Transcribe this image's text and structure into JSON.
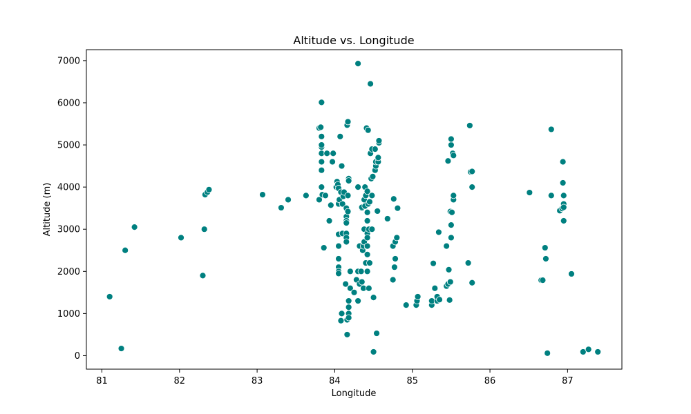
{
  "chart_data": {
    "type": "scatter",
    "title": "Altitude vs. Longitude",
    "xlabel": "Longitude",
    "ylabel": "Altitude (m)",
    "xlim": [
      80.8,
      87.7
    ],
    "ylim": [
      -320,
      7260
    ],
    "xticks": [
      81,
      82,
      83,
      84,
      85,
      86,
      87
    ],
    "yticks": [
      0,
      1000,
      2000,
      3000,
      4000,
      5000,
      6000,
      7000
    ],
    "grid": false,
    "marker_color": "#008080",
    "series": [
      {
        "points": [
          [
            81.1,
            1400
          ],
          [
            81.25,
            170
          ],
          [
            81.3,
            2500
          ],
          [
            81.42,
            3050
          ],
          [
            82.02,
            2800
          ],
          [
            82.3,
            1900
          ],
          [
            82.32,
            3000
          ],
          [
            82.33,
            3820
          ],
          [
            82.36,
            3880
          ],
          [
            82.38,
            3940
          ],
          [
            83.07,
            3820
          ],
          [
            83.31,
            3510
          ],
          [
            83.4,
            3700
          ],
          [
            83.63,
            3800
          ],
          [
            83.8,
            3700
          ],
          [
            83.8,
            5400
          ],
          [
            83.82,
            5420
          ],
          [
            83.83,
            6010
          ],
          [
            83.83,
            4800
          ],
          [
            83.83,
            4600
          ],
          [
            83.83,
            4400
          ],
          [
            83.83,
            4000
          ],
          [
            83.83,
            4950
          ],
          [
            83.83,
            5000
          ],
          [
            83.83,
            5200
          ],
          [
            83.84,
            3820
          ],
          [
            83.86,
            2560
          ],
          [
            83.88,
            3800
          ],
          [
            83.9,
            4800
          ],
          [
            83.93,
            3200
          ],
          [
            83.95,
            3570
          ],
          [
            83.97,
            4600
          ],
          [
            83.98,
            4800
          ],
          [
            84.02,
            4000
          ],
          [
            84.03,
            4130
          ],
          [
            84.04,
            4060
          ],
          [
            84.05,
            3970
          ],
          [
            84.05,
            3600
          ],
          [
            84.05,
            2880
          ],
          [
            84.05,
            2600
          ],
          [
            84.05,
            2300
          ],
          [
            84.05,
            2100
          ],
          [
            84.05,
            2000
          ],
          [
            84.05,
            1950
          ],
          [
            84.06,
            3700
          ],
          [
            84.07,
            5200
          ],
          [
            84.08,
            3880
          ],
          [
            84.08,
            830
          ],
          [
            84.09,
            1000
          ],
          [
            84.09,
            4500
          ],
          [
            84.1,
            3600
          ],
          [
            84.1,
            2900
          ],
          [
            84.11,
            3780
          ],
          [
            84.12,
            3880
          ],
          [
            84.14,
            1700
          ],
          [
            84.15,
            3500
          ],
          [
            84.15,
            3300
          ],
          [
            84.15,
            3200
          ],
          [
            84.15,
            3150
          ],
          [
            84.15,
            2900
          ],
          [
            84.15,
            2800
          ],
          [
            84.15,
            2700
          ],
          [
            84.16,
            850
          ],
          [
            84.16,
            500
          ],
          [
            84.16,
            5470
          ],
          [
            84.17,
            5550
          ],
          [
            84.17,
            3420
          ],
          [
            84.17,
            3800
          ],
          [
            84.18,
            1300
          ],
          [
            84.18,
            1150
          ],
          [
            84.18,
            1000
          ],
          [
            84.18,
            900
          ],
          [
            84.18,
            4200
          ],
          [
            84.18,
            4150
          ],
          [
            84.2,
            1600
          ],
          [
            84.2,
            2000
          ],
          [
            84.25,
            1500
          ],
          [
            84.28,
            1800
          ],
          [
            84.3,
            2000
          ],
          [
            84.3,
            1300
          ],
          [
            84.3,
            4000
          ],
          [
            84.3,
            6930
          ],
          [
            84.32,
            1700
          ],
          [
            84.32,
            2600
          ],
          [
            84.34,
            2000
          ],
          [
            84.35,
            1750
          ],
          [
            84.35,
            3500
          ],
          [
            84.35,
            3520
          ],
          [
            84.36,
            2500
          ],
          [
            84.37,
            1600
          ],
          [
            84.37,
            2600
          ],
          [
            84.38,
            3000
          ],
          [
            84.38,
            3700
          ],
          [
            84.38,
            2700
          ],
          [
            84.39,
            3550
          ],
          [
            84.39,
            4000
          ],
          [
            84.4,
            2200
          ],
          [
            84.4,
            3800
          ],
          [
            84.41,
            5400
          ],
          [
            84.42,
            2000
          ],
          [
            84.42,
            2400
          ],
          [
            84.42,
            3200
          ],
          [
            84.42,
            3400
          ],
          [
            84.42,
            3900
          ],
          [
            84.42,
            2900
          ],
          [
            84.42,
            2800
          ],
          [
            84.42,
            2600
          ],
          [
            84.43,
            3600
          ],
          [
            84.43,
            5350
          ],
          [
            84.44,
            3000
          ],
          [
            84.44,
            1600
          ],
          [
            84.45,
            2200
          ],
          [
            84.45,
            3650
          ],
          [
            84.46,
            6450
          ],
          [
            84.46,
            4800
          ],
          [
            84.47,
            4200
          ],
          [
            84.48,
            3000
          ],
          [
            84.48,
            4900
          ],
          [
            84.48,
            3800
          ],
          [
            84.49,
            4250
          ],
          [
            84.5,
            90
          ],
          [
            84.5,
            1380
          ],
          [
            84.52,
            4900
          ],
          [
            84.52,
            4400
          ],
          [
            84.53,
            4500
          ],
          [
            84.53,
            4600
          ],
          [
            84.54,
            530
          ],
          [
            84.55,
            3430
          ],
          [
            84.56,
            4600
          ],
          [
            84.56,
            4700
          ],
          [
            84.57,
            5050
          ],
          [
            84.57,
            5100
          ],
          [
            84.68,
            3250
          ],
          [
            84.75,
            1800
          ],
          [
            84.75,
            2600
          ],
          [
            84.76,
            3720
          ],
          [
            84.77,
            2100
          ],
          [
            84.78,
            2300
          ],
          [
            84.78,
            2700
          ],
          [
            84.8,
            2800
          ],
          [
            84.81,
            3500
          ],
          [
            84.92,
            1200
          ],
          [
            85.05,
            1200
          ],
          [
            85.06,
            1300
          ],
          [
            85.07,
            1400
          ],
          [
            85.25,
            1200
          ],
          [
            85.25,
            1300
          ],
          [
            85.27,
            2190
          ],
          [
            85.29,
            1600
          ],
          [
            85.32,
            1300
          ],
          [
            85.32,
            1400
          ],
          [
            85.34,
            2930
          ],
          [
            85.35,
            1330
          ],
          [
            85.44,
            2600
          ],
          [
            85.44,
            1650
          ],
          [
            85.46,
            1700
          ],
          [
            85.46,
            4620
          ],
          [
            85.47,
            2040
          ],
          [
            85.48,
            1320
          ],
          [
            85.49,
            1750
          ],
          [
            85.49,
            3420
          ],
          [
            85.5,
            3100
          ],
          [
            85.5,
            2800
          ],
          [
            85.5,
            5000
          ],
          [
            85.5,
            5140
          ],
          [
            85.51,
            3400
          ],
          [
            85.52,
            4800
          ],
          [
            85.53,
            4750
          ],
          [
            85.53,
            3700
          ],
          [
            85.53,
            3800
          ],
          [
            85.72,
            2200
          ],
          [
            85.74,
            5460
          ],
          [
            85.75,
            4360
          ],
          [
            85.77,
            4370
          ],
          [
            85.77,
            1730
          ],
          [
            85.77,
            4000
          ],
          [
            86.51,
            3870
          ],
          [
            86.66,
            1790
          ],
          [
            86.68,
            1790
          ],
          [
            86.71,
            2560
          ],
          [
            86.72,
            2300
          ],
          [
            86.74,
            60
          ],
          [
            86.79,
            5370
          ],
          [
            86.79,
            3800
          ],
          [
            86.9,
            3440
          ],
          [
            86.93,
            3490
          ],
          [
            86.94,
            4600
          ],
          [
            86.94,
            4100
          ],
          [
            86.95,
            3800
          ],
          [
            86.95,
            3600
          ],
          [
            86.95,
            3520
          ],
          [
            86.95,
            3200
          ],
          [
            87.05,
            1940
          ],
          [
            87.2,
            90
          ],
          [
            87.27,
            150
          ],
          [
            87.39,
            90
          ]
        ]
      }
    ]
  }
}
